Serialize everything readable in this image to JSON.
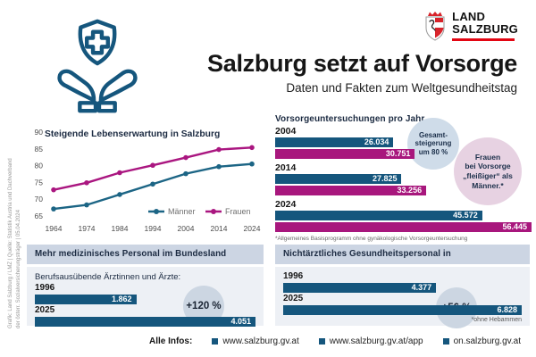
{
  "header": {
    "title": "Salzburg setzt auf Vorsorge",
    "subtitle": "Daten und Fakten zum Weltgesundheitstag",
    "logo": {
      "line1": "LAND",
      "line2": "SALZBURG"
    }
  },
  "colors": {
    "brand_blue": "#15567d",
    "brand_magenta": "#a8177d",
    "brand_red": "#e30613",
    "header_bar_bg": "#ccd5e3",
    "panel_bg": "#edf0f5",
    "badge_bg": "#ccd6e2",
    "callout_blue_bg": "#cfdce9",
    "callout_pink_bg": "#e7d2e2"
  },
  "chart_data": [
    {
      "id": "lebenserwartung",
      "type": "line",
      "title": "Steigende Lebenserwartung in Salzburg",
      "x": [
        "1964",
        "1974",
        "1984",
        "1994",
        "2004",
        "2014",
        "2024"
      ],
      "series": [
        {
          "name": "Männer",
          "color": "#1c6585",
          "values": [
            67.1,
            68.3,
            71.4,
            74.5,
            77.6,
            79.7,
            80.5
          ]
        },
        {
          "name": "Frauen",
          "color": "#aa1680",
          "values": [
            72.8,
            74.9,
            77.9,
            80.1,
            82.4,
            84.8,
            85.4
          ]
        }
      ],
      "ylim": [
        65,
        90
      ],
      "yticks": [
        65,
        70,
        75,
        80,
        85,
        90
      ],
      "grid": false,
      "legend_position": "bottom-right"
    },
    {
      "id": "vorsorgeuntersuchungen",
      "type": "bar",
      "title": "Vorsorgeuntersuchungen pro Jahr",
      "categories": [
        "2004",
        "2014",
        "2024"
      ],
      "xmax": 56445,
      "series": [
        {
          "name": "Männer",
          "color": "#15567d",
          "values": [
            26034,
            27825,
            45572
          ],
          "labels": [
            "26.034",
            "27.825",
            "45.572"
          ]
        },
        {
          "name": "Frauen",
          "color": "#a8177d",
          "values": [
            30751,
            33256,
            56445
          ],
          "labels": [
            "30.751",
            "33.256",
            "56.445"
          ]
        }
      ],
      "footnote": "*Allgemeines Basisprogramm ohne gynäkologische Vorsorgeuntersuchung",
      "callouts": [
        {
          "id": "gesamtsteigerung",
          "lines": [
            "Gesamt-",
            "steigerung",
            "um 80 %"
          ],
          "bg": "#cfdce9"
        },
        {
          "id": "frauen-fleissiger",
          "lines": [
            "Frauen",
            "bei Vorsorge",
            "„fleißiger“ als",
            "Männer.*"
          ],
          "bg": "#e7d2e2"
        }
      ]
    },
    {
      "id": "aerzte",
      "type": "bar",
      "title": "Mehr medizinisches Personal im Bundesland",
      "subtitle": "Berufsausübende Ärztinnen und Ärzte:",
      "categories": [
        "1996",
        "2025"
      ],
      "values": [
        1862,
        4051
      ],
      "labels": [
        "1.862",
        "4.051"
      ],
      "color": "#15567d",
      "badge": "+120 %"
    },
    {
      "id": "gesundheitspersonal",
      "type": "bar",
      "title": "Nichtärztliches Gesundheitspersonal in Krankenanstalten*",
      "categories": [
        "1996",
        "2025"
      ],
      "values": [
        4377,
        6828
      ],
      "labels": [
        "4.377",
        "6.828"
      ],
      "color": "#15567d",
      "badge": "+56 %",
      "footnote": "*ohne Hebammen"
    }
  ],
  "footer": {
    "label": "Alle Infos:",
    "links": [
      "www.salzburg.gv.at",
      "www.salzburg.gv.at/app",
      "on.salzburg.gv.at"
    ]
  },
  "source_note": {
    "line1": "Grafik: Land Salzburg / LMZ | Quelle: Statistik Austria und Dachverband",
    "line2": "der österr. Sozialversicherungsträger | 05.04.2024"
  }
}
